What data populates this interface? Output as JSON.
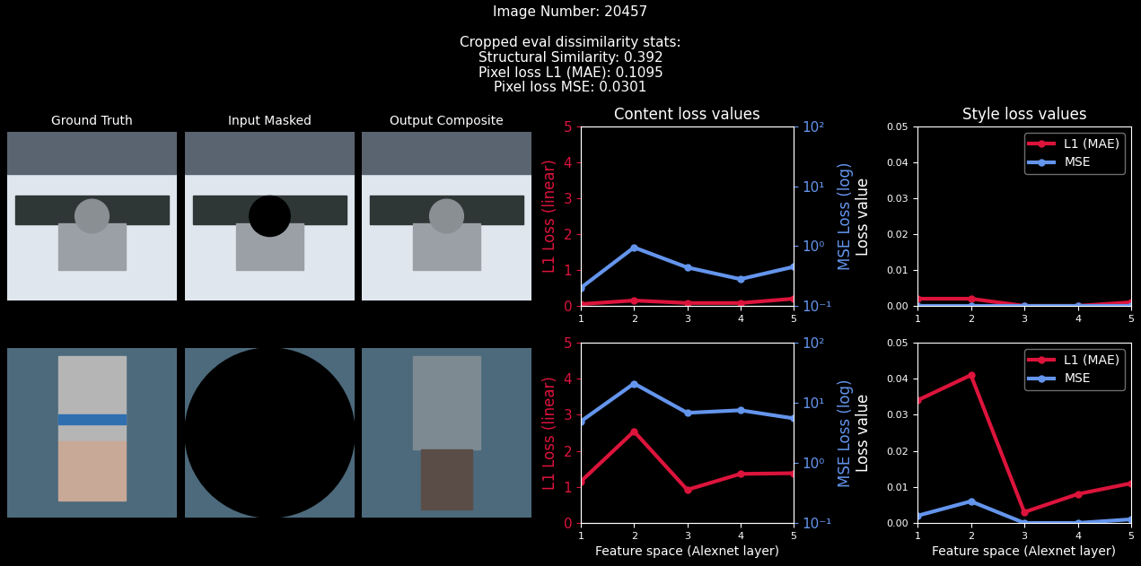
{
  "header": {
    "lines": [
      "Image Number: 20457",
      "",
      "Cropped eval dissimilarity stats:",
      "Structural Similarity: 0.392",
      "Pixel loss L1 (MAE): 0.1095",
      "Pixel loss MSE: 0.0301"
    ]
  },
  "image_panels": {
    "titles": [
      "Ground Truth",
      "Input Masked",
      "Output Composite"
    ]
  },
  "chart_data": [
    {
      "type": "line",
      "title": "Content loss values",
      "x": [
        1,
        2,
        3,
        4,
        5
      ],
      "xlim": [
        1,
        5
      ],
      "xticks": [
        1,
        2,
        3,
        4,
        5
      ],
      "ylabel": "L1 Loss (linear)",
      "ylim": [
        0,
        5
      ],
      "yticks": [
        0,
        1,
        2,
        3,
        4,
        5
      ],
      "y2label": "MSE Loss (log)",
      "y2lim": [
        0.1,
        100
      ],
      "log": "y2",
      "y2ticks": [
        {
          "value": 0.1,
          "label": "10⁻¹"
        },
        {
          "value": 1,
          "label": "10⁰"
        },
        {
          "value": 10,
          "label": "10¹"
        },
        {
          "value": 100,
          "label": "10²"
        }
      ],
      "marker": "o",
      "grid": false,
      "series": [
        {
          "name": "L1 (MAE)",
          "color": "#dc143c",
          "values": [
            0.05,
            0.15,
            0.08,
            0.08,
            0.2
          ]
        },
        {
          "name": "MSE",
          "color": "#6495ed",
          "axis": "y2",
          "values": [
            0.2,
            0.95,
            0.44,
            0.28,
            0.45
          ]
        }
      ]
    },
    {
      "type": "line",
      "title": "Style loss values",
      "x": [
        1,
        2,
        3,
        4,
        5
      ],
      "xlim": [
        1,
        5
      ],
      "xticks": [
        1,
        2,
        3,
        4,
        5
      ],
      "ylabel": "Loss value",
      "ylim": [
        0,
        0.05
      ],
      "yticks": [
        {
          "value": 0,
          "label": "0.00"
        },
        {
          "value": 0.01,
          "label": "0.01"
        },
        {
          "value": 0.02,
          "label": "0.02"
        },
        {
          "value": 0.03,
          "label": "0.03"
        },
        {
          "value": 0.04,
          "label": "0.04"
        },
        {
          "value": 0.05,
          "label": "0.05"
        }
      ],
      "marker": "o",
      "grid": false,
      "legend": "upper right",
      "series": [
        {
          "name": "L1 (MAE)",
          "color": "#dc143c",
          "values": [
            0.002,
            0.002,
            0.0,
            0.0,
            0.001
          ]
        },
        {
          "name": "MSE",
          "color": "#6495ed",
          "values": [
            0.0,
            0.0,
            0.0,
            0.0,
            0.0
          ]
        }
      ]
    },
    {
      "type": "line",
      "xlabel": "Feature space (Alexnet layer)",
      "x": [
        1,
        2,
        3,
        4,
        5
      ],
      "xlim": [
        1,
        5
      ],
      "xticks": [
        1,
        2,
        3,
        4,
        5
      ],
      "ylabel": "L1 Loss (linear)",
      "ylim": [
        0,
        5
      ],
      "yticks": [
        0,
        1,
        2,
        3,
        4,
        5
      ],
      "y2label": "MSE Loss (log)",
      "y2lim": [
        0.1,
        100
      ],
      "log": "y2",
      "y2ticks": [
        {
          "value": 0.1,
          "label": "10⁻¹"
        },
        {
          "value": 1,
          "label": "10⁰"
        },
        {
          "value": 10,
          "label": "10¹"
        },
        {
          "value": 100,
          "label": "10²"
        }
      ],
      "marker": "o",
      "grid": false,
      "series": [
        {
          "name": "L1 (MAE)",
          "color": "#dc143c",
          "values": [
            1.15,
            2.54,
            0.92,
            1.36,
            1.38
          ]
        },
        {
          "name": "MSE",
          "color": "#6495ed",
          "axis": "y2",
          "values": [
            4.9,
            20.9,
            6.8,
            7.5,
            5.5
          ]
        }
      ]
    },
    {
      "type": "line",
      "xlabel": "Feature space (Alexnet layer)",
      "x": [
        1,
        2,
        3,
        4,
        5
      ],
      "xlim": [
        1,
        5
      ],
      "xticks": [
        1,
        2,
        3,
        4,
        5
      ],
      "ylabel": "Loss value",
      "ylim": [
        0,
        0.05
      ],
      "yticks": [
        {
          "value": 0,
          "label": "0.00"
        },
        {
          "value": 0.01,
          "label": "0.01"
        },
        {
          "value": 0.02,
          "label": "0.02"
        },
        {
          "value": 0.03,
          "label": "0.03"
        },
        {
          "value": 0.04,
          "label": "0.04"
        },
        {
          "value": 0.05,
          "label": "0.05"
        }
      ],
      "marker": "o",
      "grid": false,
      "legend": "upper right",
      "series": [
        {
          "name": "L1 (MAE)",
          "color": "#dc143c",
          "values": [
            0.034,
            0.041,
            0.003,
            0.008,
            0.011
          ]
        },
        {
          "name": "MSE",
          "color": "#6495ed",
          "values": [
            0.002,
            0.006,
            0.0,
            0.0,
            0.001
          ]
        }
      ]
    }
  ]
}
